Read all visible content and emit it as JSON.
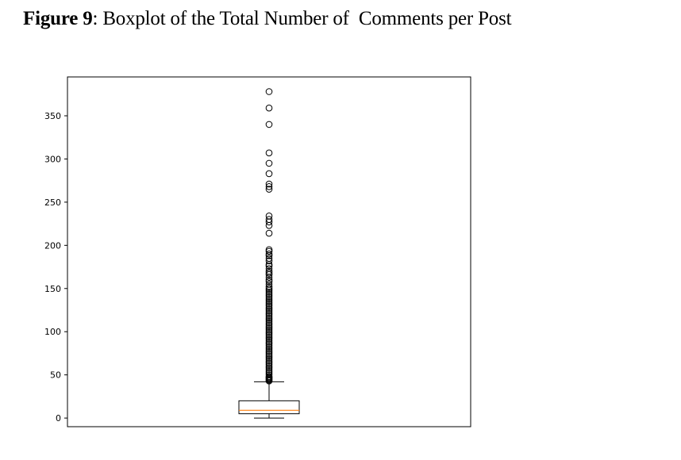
{
  "caption": {
    "label": "Figure 9",
    "separator": ": ",
    "title": "Boxplot of the Total Number of  Comments per Post"
  },
  "chart_data": {
    "type": "boxplot",
    "title": "",
    "xlabel": "",
    "ylabel": "",
    "ylim": [
      -10,
      395
    ],
    "yticks": [
      0,
      50,
      100,
      150,
      200,
      250,
      300,
      350
    ],
    "grid": false,
    "legend": "none",
    "box": {
      "whisker_low": 0,
      "q1": 5,
      "median": 9,
      "q3": 20,
      "whisker_high": 42
    },
    "outliers": [
      43,
      44,
      45,
      46,
      47,
      48,
      50,
      52,
      54,
      56,
      58,
      60,
      62,
      64,
      66,
      68,
      70,
      72,
      74,
      76,
      78,
      80,
      82,
      84,
      86,
      88,
      90,
      92,
      94,
      96,
      98,
      100,
      102,
      104,
      106,
      108,
      110,
      112,
      114,
      116,
      118,
      120,
      122,
      124,
      126,
      128,
      130,
      132,
      134,
      136,
      138,
      140,
      142,
      144,
      146,
      148,
      150,
      152,
      155,
      158,
      160,
      163,
      166,
      168,
      170,
      173,
      176,
      178,
      182,
      185,
      188,
      190,
      193,
      195,
      214,
      223,
      227,
      230,
      234,
      265,
      268,
      271,
      283,
      295,
      307,
      340,
      359,
      378
    ],
    "colors": {
      "box": "#000000",
      "median": "#ff7f0e",
      "outlier": "#000000"
    }
  }
}
